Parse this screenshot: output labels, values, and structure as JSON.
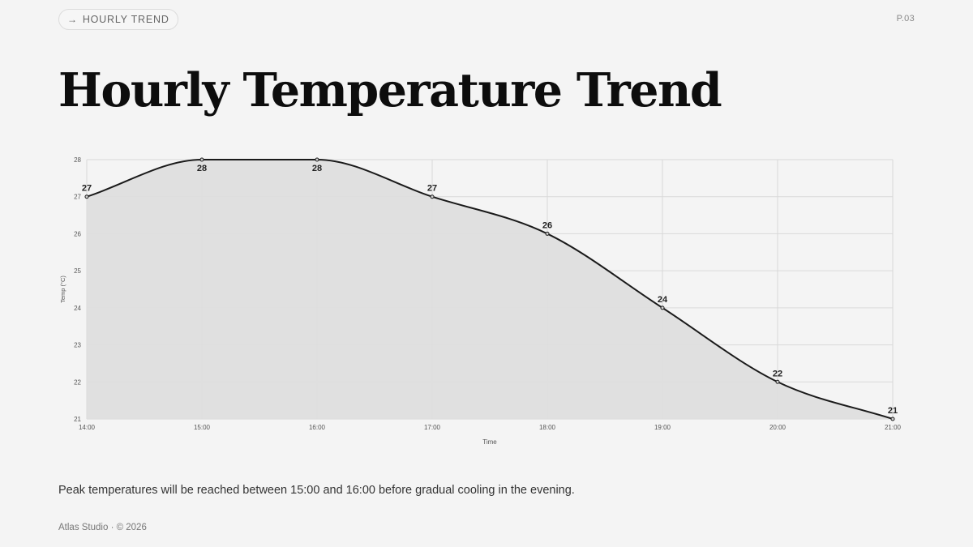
{
  "header": {
    "tag_arrow": "→",
    "tag_label": "HOURLY TREND",
    "page_number": "P.03"
  },
  "title": "Hourly Temperature Trend",
  "caption": "Peak temperatures will be reached between 15:00 and 16:00 before gradual cooling in the evening.",
  "footer": "Atlas Studio · © 2026",
  "colors": {
    "line": "#1a1a1a",
    "fill": "#dedede",
    "grid": "#d9d9d9"
  },
  "chart_data": {
    "type": "area",
    "categories": [
      "14:00",
      "15:00",
      "16:00",
      "17:00",
      "18:00",
      "19:00",
      "20:00",
      "21:00"
    ],
    "values": [
      27,
      28,
      28,
      27,
      26,
      24,
      22,
      21
    ],
    "data_labels": [
      "27",
      "28",
      "28",
      "27",
      "26",
      "24",
      "22",
      "21"
    ],
    "xlabel": "Time",
    "ylabel": "Temp (°C)",
    "ylim": [
      21,
      28
    ],
    "yticks": [
      "21",
      "22",
      "23",
      "24",
      "25",
      "26",
      "27",
      "28"
    ],
    "grid": true,
    "legend": "none"
  }
}
